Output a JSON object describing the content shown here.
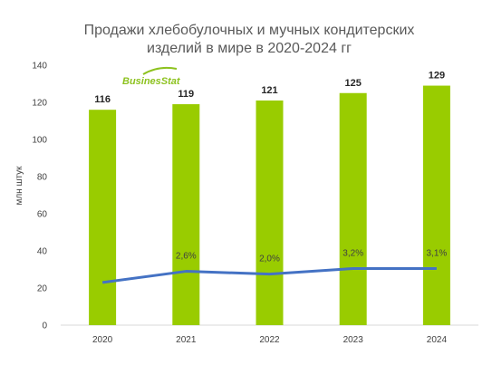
{
  "chart_data": {
    "type": "bar",
    "title_lines": [
      "Продажи хлебобулочных и мучных кондитерских",
      "изделий в мире в 2020-2024 гг"
    ],
    "ylabel": "млн штук",
    "categories": [
      "2020",
      "2021",
      "2022",
      "2023",
      "2024"
    ],
    "series": [
      {
        "values": [
          116,
          119,
          121,
          125,
          129
        ],
        "color": "#99cc00",
        "type": "bar"
      },
      {
        "values": [
          23,
          29,
          27.5,
          30.5,
          30.5
        ],
        "color": "#4472c4",
        "type": "line",
        "labels": [
          "",
          "2,6%",
          "2,0%",
          "3,2%",
          "3,1%"
        ]
      }
    ],
    "ylim": [
      0,
      140
    ],
    "yticks": [
      0,
      20,
      40,
      60,
      80,
      100,
      120,
      140
    ],
    "grid": false,
    "logo": "BusinesStat"
  }
}
